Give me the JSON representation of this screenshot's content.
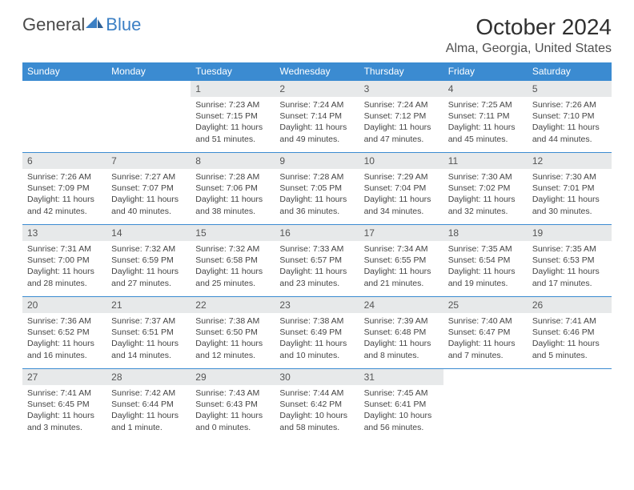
{
  "logo": {
    "text1": "General",
    "text2": "Blue"
  },
  "title": "October 2024",
  "location": "Alma, Georgia, United States",
  "colors": {
    "header_bg": "#3b8bd1",
    "header_text": "#ffffff",
    "daynum_bg": "#e7e9ea",
    "border": "#3b8bd1",
    "text": "#444444",
    "logo_gray": "#4a4a4a",
    "logo_blue": "#3b7fc4"
  },
  "weekdays": [
    "Sunday",
    "Monday",
    "Tuesday",
    "Wednesday",
    "Thursday",
    "Friday",
    "Saturday"
  ],
  "weeks": [
    [
      null,
      null,
      {
        "n": "1",
        "sunrise": "Sunrise: 7:23 AM",
        "sunset": "Sunset: 7:15 PM",
        "daylight": "Daylight: 11 hours and 51 minutes."
      },
      {
        "n": "2",
        "sunrise": "Sunrise: 7:24 AM",
        "sunset": "Sunset: 7:14 PM",
        "daylight": "Daylight: 11 hours and 49 minutes."
      },
      {
        "n": "3",
        "sunrise": "Sunrise: 7:24 AM",
        "sunset": "Sunset: 7:12 PM",
        "daylight": "Daylight: 11 hours and 47 minutes."
      },
      {
        "n": "4",
        "sunrise": "Sunrise: 7:25 AM",
        "sunset": "Sunset: 7:11 PM",
        "daylight": "Daylight: 11 hours and 45 minutes."
      },
      {
        "n": "5",
        "sunrise": "Sunrise: 7:26 AM",
        "sunset": "Sunset: 7:10 PM",
        "daylight": "Daylight: 11 hours and 44 minutes."
      }
    ],
    [
      {
        "n": "6",
        "sunrise": "Sunrise: 7:26 AM",
        "sunset": "Sunset: 7:09 PM",
        "daylight": "Daylight: 11 hours and 42 minutes."
      },
      {
        "n": "7",
        "sunrise": "Sunrise: 7:27 AM",
        "sunset": "Sunset: 7:07 PM",
        "daylight": "Daylight: 11 hours and 40 minutes."
      },
      {
        "n": "8",
        "sunrise": "Sunrise: 7:28 AM",
        "sunset": "Sunset: 7:06 PM",
        "daylight": "Daylight: 11 hours and 38 minutes."
      },
      {
        "n": "9",
        "sunrise": "Sunrise: 7:28 AM",
        "sunset": "Sunset: 7:05 PM",
        "daylight": "Daylight: 11 hours and 36 minutes."
      },
      {
        "n": "10",
        "sunrise": "Sunrise: 7:29 AM",
        "sunset": "Sunset: 7:04 PM",
        "daylight": "Daylight: 11 hours and 34 minutes."
      },
      {
        "n": "11",
        "sunrise": "Sunrise: 7:30 AM",
        "sunset": "Sunset: 7:02 PM",
        "daylight": "Daylight: 11 hours and 32 minutes."
      },
      {
        "n": "12",
        "sunrise": "Sunrise: 7:30 AM",
        "sunset": "Sunset: 7:01 PM",
        "daylight": "Daylight: 11 hours and 30 minutes."
      }
    ],
    [
      {
        "n": "13",
        "sunrise": "Sunrise: 7:31 AM",
        "sunset": "Sunset: 7:00 PM",
        "daylight": "Daylight: 11 hours and 28 minutes."
      },
      {
        "n": "14",
        "sunrise": "Sunrise: 7:32 AM",
        "sunset": "Sunset: 6:59 PM",
        "daylight": "Daylight: 11 hours and 27 minutes."
      },
      {
        "n": "15",
        "sunrise": "Sunrise: 7:32 AM",
        "sunset": "Sunset: 6:58 PM",
        "daylight": "Daylight: 11 hours and 25 minutes."
      },
      {
        "n": "16",
        "sunrise": "Sunrise: 7:33 AM",
        "sunset": "Sunset: 6:57 PM",
        "daylight": "Daylight: 11 hours and 23 minutes."
      },
      {
        "n": "17",
        "sunrise": "Sunrise: 7:34 AM",
        "sunset": "Sunset: 6:55 PM",
        "daylight": "Daylight: 11 hours and 21 minutes."
      },
      {
        "n": "18",
        "sunrise": "Sunrise: 7:35 AM",
        "sunset": "Sunset: 6:54 PM",
        "daylight": "Daylight: 11 hours and 19 minutes."
      },
      {
        "n": "19",
        "sunrise": "Sunrise: 7:35 AM",
        "sunset": "Sunset: 6:53 PM",
        "daylight": "Daylight: 11 hours and 17 minutes."
      }
    ],
    [
      {
        "n": "20",
        "sunrise": "Sunrise: 7:36 AM",
        "sunset": "Sunset: 6:52 PM",
        "daylight": "Daylight: 11 hours and 16 minutes."
      },
      {
        "n": "21",
        "sunrise": "Sunrise: 7:37 AM",
        "sunset": "Sunset: 6:51 PM",
        "daylight": "Daylight: 11 hours and 14 minutes."
      },
      {
        "n": "22",
        "sunrise": "Sunrise: 7:38 AM",
        "sunset": "Sunset: 6:50 PM",
        "daylight": "Daylight: 11 hours and 12 minutes."
      },
      {
        "n": "23",
        "sunrise": "Sunrise: 7:38 AM",
        "sunset": "Sunset: 6:49 PM",
        "daylight": "Daylight: 11 hours and 10 minutes."
      },
      {
        "n": "24",
        "sunrise": "Sunrise: 7:39 AM",
        "sunset": "Sunset: 6:48 PM",
        "daylight": "Daylight: 11 hours and 8 minutes."
      },
      {
        "n": "25",
        "sunrise": "Sunrise: 7:40 AM",
        "sunset": "Sunset: 6:47 PM",
        "daylight": "Daylight: 11 hours and 7 minutes."
      },
      {
        "n": "26",
        "sunrise": "Sunrise: 7:41 AM",
        "sunset": "Sunset: 6:46 PM",
        "daylight": "Daylight: 11 hours and 5 minutes."
      }
    ],
    [
      {
        "n": "27",
        "sunrise": "Sunrise: 7:41 AM",
        "sunset": "Sunset: 6:45 PM",
        "daylight": "Daylight: 11 hours and 3 minutes."
      },
      {
        "n": "28",
        "sunrise": "Sunrise: 7:42 AM",
        "sunset": "Sunset: 6:44 PM",
        "daylight": "Daylight: 11 hours and 1 minute."
      },
      {
        "n": "29",
        "sunrise": "Sunrise: 7:43 AM",
        "sunset": "Sunset: 6:43 PM",
        "daylight": "Daylight: 11 hours and 0 minutes."
      },
      {
        "n": "30",
        "sunrise": "Sunrise: 7:44 AM",
        "sunset": "Sunset: 6:42 PM",
        "daylight": "Daylight: 10 hours and 58 minutes."
      },
      {
        "n": "31",
        "sunrise": "Sunrise: 7:45 AM",
        "sunset": "Sunset: 6:41 PM",
        "daylight": "Daylight: 10 hours and 56 minutes."
      },
      null,
      null
    ]
  ]
}
